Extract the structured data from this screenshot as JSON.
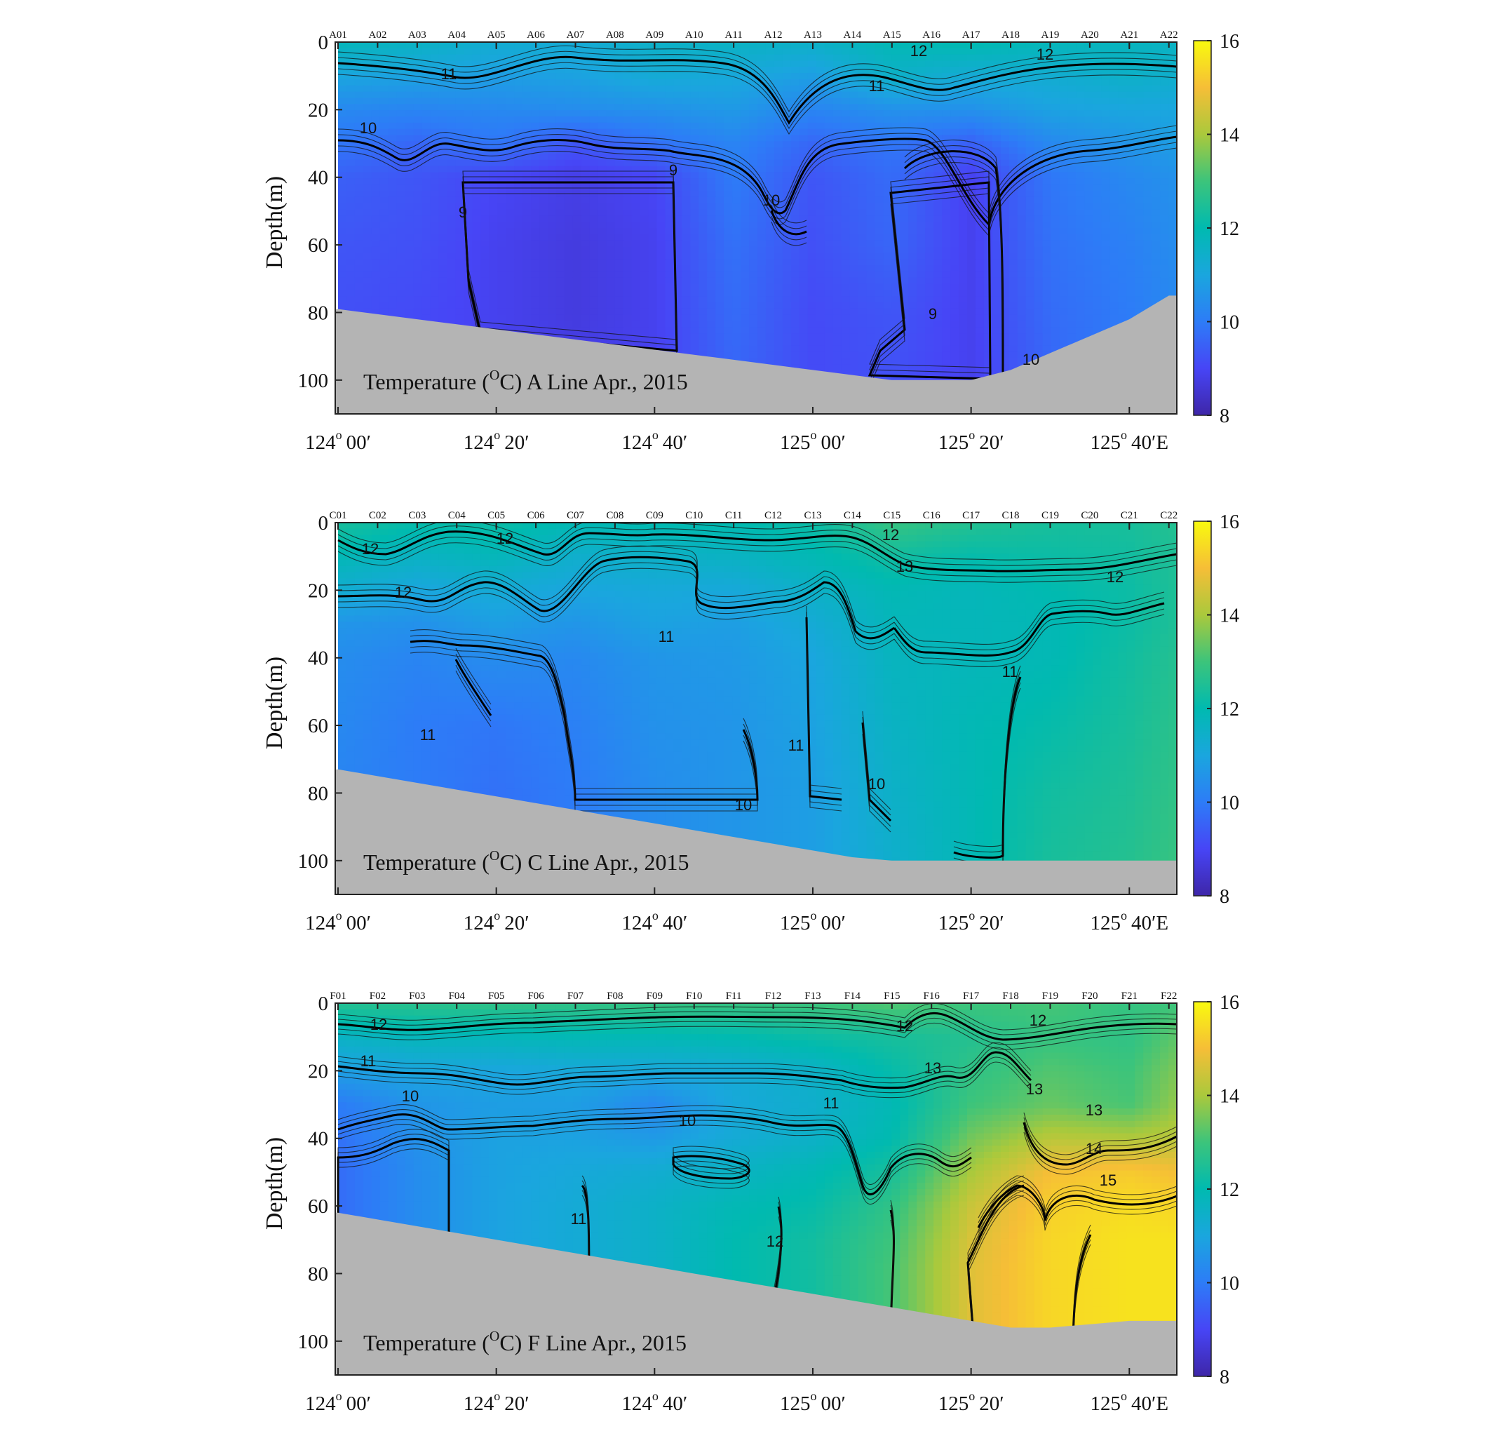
{
  "colormap": {
    "name": "parula",
    "stops": [
      "#3e26a8",
      "#4745f6",
      "#2d7cf7",
      "#1aa6de",
      "#00bab0",
      "#3cc47b",
      "#aac93c",
      "#f6be37",
      "#f8fa0e"
    ]
  },
  "seabed_color": "#b4b4b4",
  "panels": [
    {
      "title_text": "Temperature (",
      "title_sup": "O",
      "title_rest": "C)  A Line   Apr., 2015",
      "stations": [
        "A01",
        "A02",
        "A03",
        "A04",
        "A05",
        "A06",
        "A07",
        "A08",
        "A09",
        "A10",
        "A11",
        "A12",
        "A13",
        "A14",
        "A15",
        "A16",
        "A17",
        "A18",
        "A19",
        "A20",
        "A21",
        "A22"
      ],
      "ylabel": "Depth(m)",
      "y_ticks": [
        "0",
        "20",
        "40",
        "60",
        "80",
        "100"
      ],
      "x_ticks": [
        {
          "deg": "124",
          "min": "00′"
        },
        {
          "deg": "124",
          "min": "20′"
        },
        {
          "deg": "124",
          "min": "40′"
        },
        {
          "deg": "125",
          "min": "00′"
        },
        {
          "deg": "125",
          "min": "20′"
        },
        {
          "deg": "125",
          "min": "40′E"
        }
      ],
      "colorbar_ticks": [
        "16",
        "14",
        "12",
        "10",
        "8"
      ],
      "contour_labels": [
        "11",
        "10",
        "9",
        "9",
        "10",
        "9",
        "12",
        "12",
        "11",
        "10"
      ]
    },
    {
      "title_text": "Temperature (",
      "title_sup": "O",
      "title_rest": "C)  C Line   Apr., 2015",
      "stations": [
        "C01",
        "C02",
        "C03",
        "C04",
        "C05",
        "C06",
        "C07",
        "C08",
        "C09",
        "C10",
        "C11",
        "C12",
        "C13",
        "C14",
        "C15",
        "C16",
        "C17",
        "C18",
        "C19",
        "C20",
        "C21",
        "C22"
      ],
      "ylabel": "Depth(m)",
      "y_ticks": [
        "0",
        "20",
        "40",
        "60",
        "80",
        "100"
      ],
      "x_ticks": [
        {
          "deg": "124",
          "min": "00′"
        },
        {
          "deg": "124",
          "min": "20′"
        },
        {
          "deg": "124",
          "min": "40′"
        },
        {
          "deg": "125",
          "min": "00′"
        },
        {
          "deg": "125",
          "min": "20′"
        },
        {
          "deg": "125",
          "min": "40′E"
        }
      ],
      "colorbar_ticks": [
        "16",
        "14",
        "12",
        "10",
        "8"
      ],
      "contour_labels": [
        "12",
        "12",
        "12",
        "13",
        "12",
        "11",
        "11",
        "10",
        "10",
        "11",
        "11",
        "12"
      ]
    },
    {
      "title_text": "Temperature (",
      "title_sup": "O",
      "title_rest": "C)  F Line   Apr., 2015",
      "stations": [
        "F01",
        "F02",
        "F03",
        "F04",
        "F05",
        "F06",
        "F07",
        "F08",
        "F09",
        "F10",
        "F11",
        "F12",
        "F13",
        "F14",
        "F15",
        "F16",
        "F17",
        "F18",
        "F19",
        "F20",
        "F21",
        "F22"
      ],
      "ylabel": "Depth(m)",
      "y_ticks": [
        "0",
        "20",
        "40",
        "60",
        "80",
        "100"
      ],
      "x_ticks": [
        {
          "deg": "124",
          "min": "00′"
        },
        {
          "deg": "124",
          "min": "20′"
        },
        {
          "deg": "124",
          "min": "40′"
        },
        {
          "deg": "125",
          "min": "00′"
        },
        {
          "deg": "125",
          "min": "20′"
        },
        {
          "deg": "125",
          "min": "40′E"
        }
      ],
      "colorbar_ticks": [
        "16",
        "14",
        "12",
        "10",
        "8"
      ],
      "contour_labels": [
        "12",
        "11",
        "10",
        "10",
        "11",
        "12",
        "11",
        "12",
        "13",
        "12",
        "13",
        "13",
        "14",
        "15"
      ]
    }
  ],
  "chart_data": [
    {
      "type": "heatmap",
      "title": "Temperature (OC)  A Line   Apr., 2015",
      "xlabel": "",
      "ylabel": "Depth(m)",
      "x_unit": "longitude (minutes east of 124°00′)",
      "x_ticks": [
        0,
        20,
        40,
        60,
        80,
        100
      ],
      "x_range": [
        0,
        106
      ],
      "ylim": [
        0,
        110
      ],
      "y_reversed": true,
      "color_range": [
        8,
        16
      ],
      "station_longitude_min": [
        0,
        5,
        10,
        15,
        20,
        25,
        30,
        35,
        40,
        45,
        50,
        55,
        60,
        65,
        70,
        75,
        80,
        85,
        90,
        95,
        100,
        105
      ],
      "seabed_depth_m": [
        79,
        80.5,
        82,
        83.5,
        85,
        86.5,
        88,
        89.5,
        91,
        92.5,
        94,
        95.5,
        97,
        98.5,
        100,
        100,
        100,
        97,
        92,
        87,
        82,
        75
      ],
      "temperature_field": {
        "columns_lon_min": [
          0,
          10,
          20,
          30,
          40,
          50,
          60,
          70,
          80,
          90,
          100,
          106
        ],
        "rows_depth_m": [
          0,
          10,
          20,
          30,
          40,
          60,
          80,
          100
        ],
        "values": [
          [
            11.8,
            11.6,
            11.3,
            11.2,
            11.5,
            11.6,
            11.5,
            11.9,
            12.0,
            11.8,
            11.7,
            11.6
          ],
          [
            11.0,
            10.9,
            10.8,
            10.9,
            11.2,
            11.1,
            10.8,
            11.5,
            11.2,
            11.3,
            11.5,
            11.4
          ],
          [
            10.3,
            10.2,
            10.3,
            10.4,
            10.5,
            10.7,
            10.2,
            10.5,
            10.5,
            10.9,
            11.0,
            11.0
          ],
          [
            9.9,
            9.6,
            9.9,
            9.3,
            9.8,
            10.2,
            9.6,
            9.9,
            9.5,
            10.3,
            10.6,
            10.8
          ],
          [
            9.5,
            9.3,
            9.0,
            8.8,
            9.0,
            10.0,
            9.3,
            9.7,
            8.9,
            9.9,
            10.3,
            10.5
          ],
          [
            9.3,
            9.2,
            8.9,
            8.7,
            8.9,
            9.8,
            9.2,
            9.6,
            8.9,
            9.8,
            10.1,
            10.4
          ],
          [
            9.2,
            9.1,
            8.9,
            8.7,
            8.9,
            9.7,
            9.1,
            9.3,
            8.9,
            9.7,
            10.0,
            10.3
          ],
          [
            9.2,
            9.1,
            8.9,
            8.8,
            8.9,
            9.6,
            9.1,
            9.2,
            8.9,
            9.6,
            10.0,
            10.2
          ]
        ]
      },
      "colorbar_ticks": [
        8,
        10,
        12,
        14,
        16
      ]
    },
    {
      "type": "heatmap",
      "title": "Temperature (OC)  C Line   Apr., 2015",
      "xlabel": "",
      "ylabel": "Depth(m)",
      "x_unit": "longitude (minutes east of 124°00′)",
      "x_ticks": [
        0,
        20,
        40,
        60,
        80,
        100
      ],
      "x_range": [
        0,
        106
      ],
      "ylim": [
        0,
        110
      ],
      "y_reversed": true,
      "color_range": [
        8,
        16
      ],
      "station_longitude_min": [
        0,
        5,
        10,
        15,
        20,
        25,
        30,
        35,
        40,
        45,
        50,
        55,
        60,
        65,
        70,
        75,
        80,
        85,
        90,
        95,
        100,
        105
      ],
      "seabed_depth_m": [
        73,
        75,
        77,
        79,
        81,
        83,
        85,
        87,
        89,
        91,
        93,
        95,
        97,
        99,
        100,
        100,
        100,
        100,
        100,
        100,
        100,
        100
      ],
      "temperature_field": {
        "columns_lon_min": [
          0,
          10,
          20,
          30,
          40,
          50,
          60,
          70,
          80,
          90,
          100,
          106
        ],
        "rows_depth_m": [
          0,
          10,
          20,
          30,
          40,
          60,
          80,
          100
        ],
        "values": [
          [
            12.4,
            12.1,
            12.2,
            11.9,
            12.0,
            12.0,
            12.2,
            12.9,
            12.6,
            12.4,
            12.4,
            12.6
          ],
          [
            11.9,
            11.6,
            11.8,
            11.4,
            11.5,
            11.6,
            11.9,
            12.3,
            12.1,
            12.2,
            12.3,
            12.5
          ],
          [
            11.3,
            11.0,
            11.2,
            11.0,
            11.1,
            11.1,
            11.5,
            11.9,
            11.8,
            12.0,
            12.2,
            12.5
          ],
          [
            10.6,
            10.5,
            10.8,
            10.6,
            10.9,
            10.8,
            11.2,
            11.8,
            11.8,
            11.9,
            12.2,
            12.5
          ],
          [
            10.4,
            10.2,
            10.4,
            10.3,
            10.6,
            10.7,
            11.0,
            11.7,
            11.8,
            11.9,
            12.3,
            12.6
          ],
          [
            10.3,
            10.0,
            9.9,
            10.1,
            10.5,
            10.6,
            10.9,
            11.6,
            11.9,
            12.1,
            12.4,
            12.7
          ],
          [
            10.2,
            10.0,
            9.8,
            10.0,
            10.4,
            10.6,
            10.8,
            11.5,
            11.9,
            12.3,
            12.5,
            12.8
          ],
          [
            10.2,
            10.0,
            9.8,
            10.0,
            10.4,
            10.6,
            10.8,
            11.4,
            11.9,
            12.4,
            12.6,
            12.9
          ]
        ]
      },
      "colorbar_ticks": [
        8,
        10,
        12,
        14,
        16
      ]
    },
    {
      "type": "heatmap",
      "title": "Temperature (OC)  F Line   Apr., 2015",
      "xlabel": "",
      "ylabel": "Depth(m)",
      "x_unit": "longitude (minutes east of 124°00′)",
      "x_ticks": [
        0,
        20,
        40,
        60,
        80,
        100
      ],
      "x_range": [
        0,
        106
      ],
      "ylim": [
        0,
        110
      ],
      "y_reversed": true,
      "color_range": [
        8,
        16
      ],
      "station_longitude_min": [
        0,
        5,
        10,
        15,
        20,
        25,
        30,
        35,
        40,
        45,
        50,
        55,
        60,
        65,
        70,
        75,
        80,
        85,
        90,
        95,
        100,
        105
      ],
      "seabed_depth_m": [
        62,
        64,
        66,
        68,
        70,
        72,
        74,
        76,
        78,
        80,
        82,
        84,
        86,
        88,
        90,
        92,
        94,
        96,
        96,
        95,
        94,
        94
      ],
      "temperature_field": {
        "columns_lon_min": [
          0,
          10,
          20,
          30,
          40,
          50,
          60,
          70,
          80,
          90,
          100,
          106
        ],
        "rows_depth_m": [
          0,
          10,
          20,
          30,
          40,
          50,
          60,
          70,
          80,
          90,
          100
        ],
        "values": [
          [
            12.6,
            12.7,
            12.8,
            12.8,
            12.9,
            12.9,
            13.0,
            13.2,
            13.0,
            13.1,
            12.9,
            13.0
          ],
          [
            11.6,
            11.8,
            11.8,
            11.9,
            11.9,
            12.0,
            12.2,
            12.4,
            12.6,
            12.9,
            12.8,
            13.3
          ],
          [
            10.8,
            11.0,
            11.0,
            11.1,
            11.1,
            11.2,
            11.5,
            12.1,
            12.8,
            13.2,
            13.0,
            13.6
          ],
          [
            10.0,
            10.6,
            10.8,
            10.8,
            10.3,
            11.1,
            11.4,
            11.9,
            13.0,
            13.4,
            13.1,
            13.8
          ],
          [
            9.8,
            10.5,
            10.9,
            10.9,
            10.7,
            11.2,
            11.5,
            12.0,
            13.5,
            14.2,
            14.1,
            14.2
          ],
          [
            9.7,
            10.4,
            10.9,
            11.1,
            11.3,
            11.6,
            11.9,
            12.4,
            14.0,
            15.0,
            15.2,
            15.0
          ],
          [
            9.7,
            10.4,
            10.9,
            11.2,
            11.5,
            11.9,
            12.1,
            12.8,
            14.4,
            15.3,
            15.5,
            15.4
          ],
          [
            9.7,
            10.4,
            10.9,
            11.2,
            11.5,
            12.0,
            12.3,
            13.0,
            14.6,
            15.4,
            15.6,
            15.6
          ],
          [
            9.7,
            10.4,
            10.9,
            11.2,
            11.5,
            12.0,
            12.3,
            13.1,
            14.7,
            15.4,
            15.6,
            15.6
          ],
          [
            9.7,
            10.4,
            10.9,
            11.2,
            11.5,
            12.0,
            12.3,
            13.1,
            14.7,
            15.4,
            15.6,
            15.6
          ],
          [
            9.7,
            10.4,
            10.9,
            11.2,
            11.5,
            12.0,
            12.3,
            13.1,
            14.7,
            15.4,
            15.6,
            15.6
          ]
        ]
      },
      "colorbar_ticks": [
        8,
        10,
        12,
        14,
        16
      ]
    }
  ]
}
